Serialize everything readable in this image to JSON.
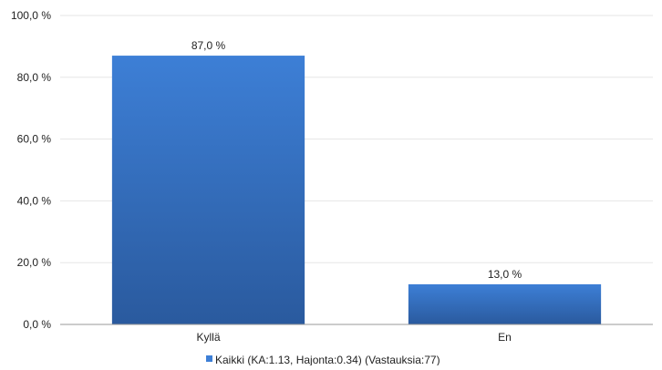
{
  "chart_data": {
    "type": "bar",
    "categories": [
      "Kyllä",
      "En"
    ],
    "series": [
      {
        "name": "Kaikki (KA:1.13, Hajonta:0.34) (Vastauksia:77)",
        "values": [
          87.0,
          13.0
        ],
        "data_labels": [
          "87,0 %",
          "13,0 %"
        ]
      }
    ],
    "yticks": [
      0,
      20,
      40,
      60,
      80,
      100
    ],
    "ytick_labels": [
      "0,0 %",
      "20,0 %",
      "40,0 %",
      "60,0 %",
      "80,0 %",
      "100,0 %"
    ],
    "ylim": [
      0,
      100
    ],
    "grid": true,
    "legend_position": "bottom-center",
    "colors": {
      "bar_top": "#3d7fd6",
      "bar_bottom": "#2a5a9e",
      "grid": "#e6e6e6",
      "axis": "#999999",
      "text": "#222222"
    }
  }
}
